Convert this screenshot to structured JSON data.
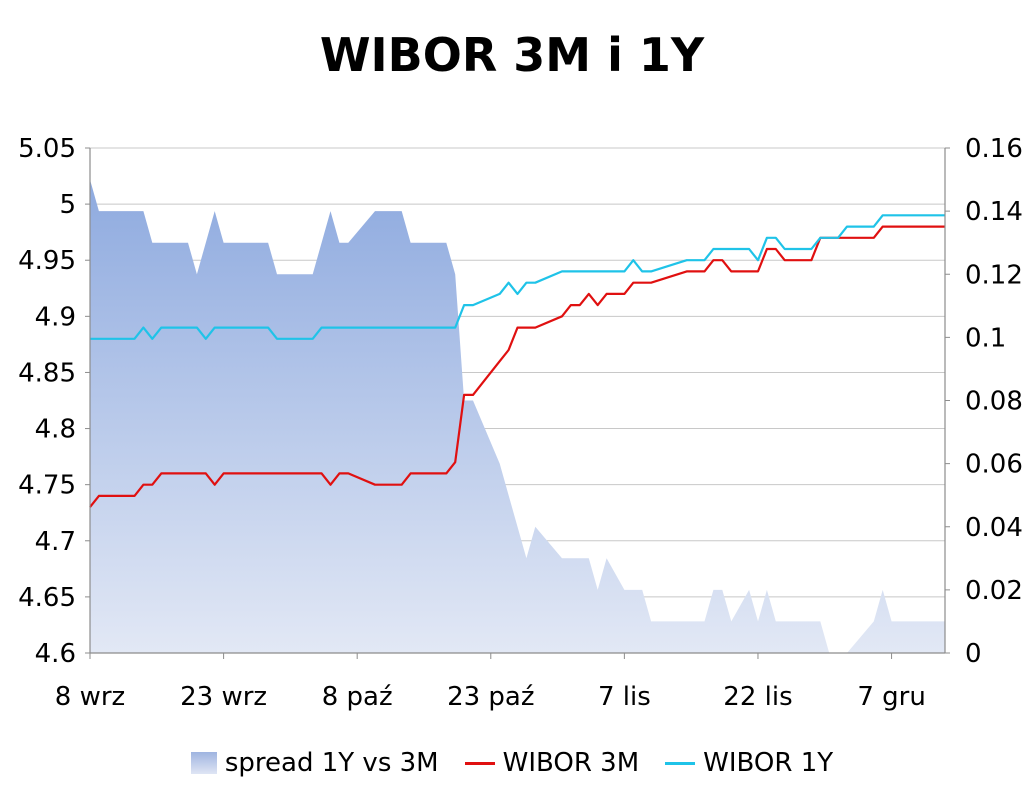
{
  "chart_data": {
    "type": "line",
    "title": "WIBOR 3M i 1Y",
    "x_axis": {
      "start_date": "2011-09-08",
      "end_date": "2011-12-13",
      "tick_dates": [
        "2011-09-08",
        "2011-09-23",
        "2011-10-08",
        "2011-10-23",
        "2011-11-07",
        "2011-11-22",
        "2011-12-07"
      ],
      "tick_labels": [
        "8 wrz",
        "23 wrz",
        "8 paź",
        "23 paź",
        "7 lis",
        "22 lis",
        "7 gru"
      ]
    },
    "y_left": {
      "min": 4.6,
      "max": 5.05,
      "ticks": [
        5.05,
        5,
        4.95,
        4.9,
        4.85,
        4.8,
        4.75,
        4.7,
        4.65,
        4.6
      ],
      "tick_labels": [
        "5.05",
        "5",
        "4.95",
        "4.9",
        "4.85",
        "4.8",
        "4.75",
        "4.7",
        "4.65",
        "4.6"
      ]
    },
    "y_right": {
      "min": 0,
      "max": 0.16,
      "ticks": [
        0.16,
        0.14,
        0.12,
        0.1,
        0.08,
        0.06,
        0.04,
        0.02,
        0
      ],
      "tick_labels": [
        "0.16",
        "0.14",
        "0.12",
        "0.1",
        "0.08",
        "0.06",
        "0.04",
        "0.02",
        "0"
      ]
    },
    "grid": "horizontal",
    "legend_position": "bottom",
    "series": [
      {
        "name": "spread 1Y vs 3M",
        "kind": "area",
        "axis": "right",
        "color_top": "#8eaadf",
        "color_bottom": "#e2e8f5",
        "points": [
          [
            "2011-09-08",
            0.15
          ],
          [
            "2011-09-09",
            0.14
          ],
          [
            "2011-09-13",
            0.14
          ],
          [
            "2011-09-14",
            0.14
          ],
          [
            "2011-09-15",
            0.13
          ],
          [
            "2011-09-16",
            0.13
          ],
          [
            "2011-09-19",
            0.13
          ],
          [
            "2011-09-20",
            0.12
          ],
          [
            "2011-09-21",
            0.13
          ],
          [
            "2011-09-22",
            0.14
          ],
          [
            "2011-09-23",
            0.13
          ],
          [
            "2011-09-26",
            0.13
          ],
          [
            "2011-09-27",
            0.13
          ],
          [
            "2011-09-28",
            0.13
          ],
          [
            "2011-09-29",
            0.12
          ],
          [
            "2011-09-30",
            0.12
          ],
          [
            "2011-10-03",
            0.12
          ],
          [
            "2011-10-04",
            0.13
          ],
          [
            "2011-10-05",
            0.14
          ],
          [
            "2011-10-06",
            0.13
          ],
          [
            "2011-10-07",
            0.13
          ],
          [
            "2011-10-10",
            0.14
          ],
          [
            "2011-10-11",
            0.14
          ],
          [
            "2011-10-12",
            0.14
          ],
          [
            "2011-10-13",
            0.14
          ],
          [
            "2011-10-14",
            0.13
          ],
          [
            "2011-10-17",
            0.13
          ],
          [
            "2011-10-18",
            0.13
          ],
          [
            "2011-10-19",
            0.12
          ],
          [
            "2011-10-20",
            0.08
          ],
          [
            "2011-10-21",
            0.08
          ],
          [
            "2011-10-24",
            0.06
          ],
          [
            "2011-10-25",
            0.05
          ],
          [
            "2011-10-26",
            0.04
          ],
          [
            "2011-10-27",
            0.03
          ],
          [
            "2011-10-28",
            0.04
          ],
          [
            "2011-10-31",
            0.03
          ],
          [
            "2011-11-01",
            0.03
          ],
          [
            "2011-11-02",
            0.03
          ],
          [
            "2011-11-03",
            0.03
          ],
          [
            "2011-11-04",
            0.02
          ],
          [
            "2011-11-05",
            0.03
          ],
          [
            "2011-11-07",
            0.02
          ],
          [
            "2011-11-08",
            0.02
          ],
          [
            "2011-11-09",
            0.02
          ],
          [
            "2011-11-10",
            0.01
          ],
          [
            "2011-11-14",
            0.01
          ],
          [
            "2011-11-15",
            0.01
          ],
          [
            "2011-11-16",
            0.01
          ],
          [
            "2011-11-17",
            0.02
          ],
          [
            "2011-11-18",
            0.02
          ],
          [
            "2011-11-19",
            0.01
          ],
          [
            "2011-11-21",
            0.02
          ],
          [
            "2011-11-22",
            0.01
          ],
          [
            "2011-11-23",
            0.02
          ],
          [
            "2011-11-24",
            0.01
          ],
          [
            "2011-11-25",
            0.01
          ],
          [
            "2011-11-28",
            0.01
          ],
          [
            "2011-11-29",
            0.01
          ],
          [
            "2011-11-30",
            0.0
          ],
          [
            "2011-12-01",
            0.0
          ],
          [
            "2011-12-02",
            0.0
          ],
          [
            "2011-12-05",
            0.01
          ],
          [
            "2011-12-06",
            0.02
          ],
          [
            "2011-12-07",
            0.01
          ],
          [
            "2011-12-08",
            0.01
          ],
          [
            "2011-12-09",
            0.01
          ],
          [
            "2011-12-12",
            0.01
          ],
          [
            "2011-12-13",
            0.01
          ]
        ]
      },
      {
        "name": "WIBOR 3M",
        "kind": "line",
        "axis": "left",
        "color": "#e01010",
        "points": [
          [
            "2011-09-08",
            4.73
          ],
          [
            "2011-09-09",
            4.74
          ],
          [
            "2011-09-13",
            4.74
          ],
          [
            "2011-09-14",
            4.75
          ],
          [
            "2011-09-15",
            4.75
          ],
          [
            "2011-09-16",
            4.76
          ],
          [
            "2011-09-19",
            4.76
          ],
          [
            "2011-09-20",
            4.76
          ],
          [
            "2011-09-21",
            4.76
          ],
          [
            "2011-09-22",
            4.75
          ],
          [
            "2011-09-23",
            4.76
          ],
          [
            "2011-09-26",
            4.76
          ],
          [
            "2011-09-27",
            4.76
          ],
          [
            "2011-09-28",
            4.76
          ],
          [
            "2011-09-29",
            4.76
          ],
          [
            "2011-09-30",
            4.76
          ],
          [
            "2011-10-03",
            4.76
          ],
          [
            "2011-10-04",
            4.76
          ],
          [
            "2011-10-05",
            4.75
          ],
          [
            "2011-10-06",
            4.76
          ],
          [
            "2011-10-07",
            4.76
          ],
          [
            "2011-10-10",
            4.75
          ],
          [
            "2011-10-11",
            4.75
          ],
          [
            "2011-10-12",
            4.75
          ],
          [
            "2011-10-13",
            4.75
          ],
          [
            "2011-10-14",
            4.76
          ],
          [
            "2011-10-17",
            4.76
          ],
          [
            "2011-10-18",
            4.76
          ],
          [
            "2011-10-19",
            4.77
          ],
          [
            "2011-10-20",
            4.83
          ],
          [
            "2011-10-21",
            4.83
          ],
          [
            "2011-10-24",
            4.86
          ],
          [
            "2011-10-25",
            4.87
          ],
          [
            "2011-10-26",
            4.89
          ],
          [
            "2011-10-27",
            4.89
          ],
          [
            "2011-10-28",
            4.89
          ],
          [
            "2011-10-31",
            4.9
          ],
          [
            "2011-11-01",
            4.91
          ],
          [
            "2011-11-02",
            4.91
          ],
          [
            "2011-11-03",
            4.92
          ],
          [
            "2011-11-04",
            4.91
          ],
          [
            "2011-11-05",
            4.92
          ],
          [
            "2011-11-07",
            4.92
          ],
          [
            "2011-11-08",
            4.93
          ],
          [
            "2011-11-09",
            4.93
          ],
          [
            "2011-11-10",
            4.93
          ],
          [
            "2011-11-14",
            4.94
          ],
          [
            "2011-11-15",
            4.94
          ],
          [
            "2011-11-16",
            4.94
          ],
          [
            "2011-11-17",
            4.95
          ],
          [
            "2011-11-18",
            4.95
          ],
          [
            "2011-11-19",
            4.94
          ],
          [
            "2011-11-21",
            4.94
          ],
          [
            "2011-11-22",
            4.94
          ],
          [
            "2011-11-23",
            4.96
          ],
          [
            "2011-11-24",
            4.96
          ],
          [
            "2011-11-25",
            4.95
          ],
          [
            "2011-11-28",
            4.95
          ],
          [
            "2011-11-29",
            4.97
          ],
          [
            "2011-11-30",
            4.97
          ],
          [
            "2011-12-01",
            4.97
          ],
          [
            "2011-12-02",
            4.97
          ],
          [
            "2011-12-05",
            4.97
          ],
          [
            "2011-12-06",
            4.98
          ],
          [
            "2011-12-07",
            4.98
          ],
          [
            "2011-12-08",
            4.98
          ],
          [
            "2011-12-09",
            4.98
          ],
          [
            "2011-12-12",
            4.98
          ],
          [
            "2011-12-13",
            4.98
          ]
        ]
      },
      {
        "name": "WIBOR 1Y",
        "kind": "line",
        "axis": "left",
        "color": "#1fc3e8",
        "points": [
          [
            "2011-09-08",
            4.88
          ],
          [
            "2011-09-09",
            4.88
          ],
          [
            "2011-09-13",
            4.88
          ],
          [
            "2011-09-14",
            4.89
          ],
          [
            "2011-09-15",
            4.88
          ],
          [
            "2011-09-16",
            4.89
          ],
          [
            "2011-09-19",
            4.89
          ],
          [
            "2011-09-20",
            4.89
          ],
          [
            "2011-09-21",
            4.88
          ],
          [
            "2011-09-22",
            4.89
          ],
          [
            "2011-09-23",
            4.89
          ],
          [
            "2011-09-26",
            4.89
          ],
          [
            "2011-09-27",
            4.89
          ],
          [
            "2011-09-28",
            4.89
          ],
          [
            "2011-09-29",
            4.88
          ],
          [
            "2011-09-30",
            4.88
          ],
          [
            "2011-10-03",
            4.88
          ],
          [
            "2011-10-04",
            4.89
          ],
          [
            "2011-10-05",
            4.89
          ],
          [
            "2011-10-06",
            4.89
          ],
          [
            "2011-10-07",
            4.89
          ],
          [
            "2011-10-10",
            4.89
          ],
          [
            "2011-10-11",
            4.89
          ],
          [
            "2011-10-12",
            4.89
          ],
          [
            "2011-10-13",
            4.89
          ],
          [
            "2011-10-14",
            4.89
          ],
          [
            "2011-10-17",
            4.89
          ],
          [
            "2011-10-18",
            4.89
          ],
          [
            "2011-10-19",
            4.89
          ],
          [
            "2011-10-20",
            4.91
          ],
          [
            "2011-10-21",
            4.91
          ],
          [
            "2011-10-24",
            4.92
          ],
          [
            "2011-10-25",
            4.93
          ],
          [
            "2011-10-26",
            4.92
          ],
          [
            "2011-10-27",
            4.93
          ],
          [
            "2011-10-28",
            4.93
          ],
          [
            "2011-10-31",
            4.94
          ],
          [
            "2011-11-01",
            4.94
          ],
          [
            "2011-11-02",
            4.94
          ],
          [
            "2011-11-03",
            4.94
          ],
          [
            "2011-11-04",
            4.94
          ],
          [
            "2011-11-05",
            4.94
          ],
          [
            "2011-11-07",
            4.94
          ],
          [
            "2011-11-08",
            4.95
          ],
          [
            "2011-11-09",
            4.94
          ],
          [
            "2011-11-10",
            4.94
          ],
          [
            "2011-11-14",
            4.95
          ],
          [
            "2011-11-15",
            4.95
          ],
          [
            "2011-11-16",
            4.95
          ],
          [
            "2011-11-17",
            4.96
          ],
          [
            "2011-11-18",
            4.96
          ],
          [
            "2011-11-19",
            4.96
          ],
          [
            "2011-11-21",
            4.96
          ],
          [
            "2011-11-22",
            4.95
          ],
          [
            "2011-11-23",
            4.97
          ],
          [
            "2011-11-24",
            4.97
          ],
          [
            "2011-11-25",
            4.96
          ],
          [
            "2011-11-28",
            4.96
          ],
          [
            "2011-11-29",
            4.97
          ],
          [
            "2011-11-30",
            4.97
          ],
          [
            "2011-12-01",
            4.97
          ],
          [
            "2011-12-02",
            4.98
          ],
          [
            "2011-12-05",
            4.98
          ],
          [
            "2011-12-06",
            4.99
          ],
          [
            "2011-12-07",
            4.99
          ],
          [
            "2011-12-08",
            4.99
          ],
          [
            "2011-12-09",
            4.99
          ],
          [
            "2011-12-12",
            4.99
          ],
          [
            "2011-12-13",
            4.99
          ]
        ]
      }
    ]
  }
}
